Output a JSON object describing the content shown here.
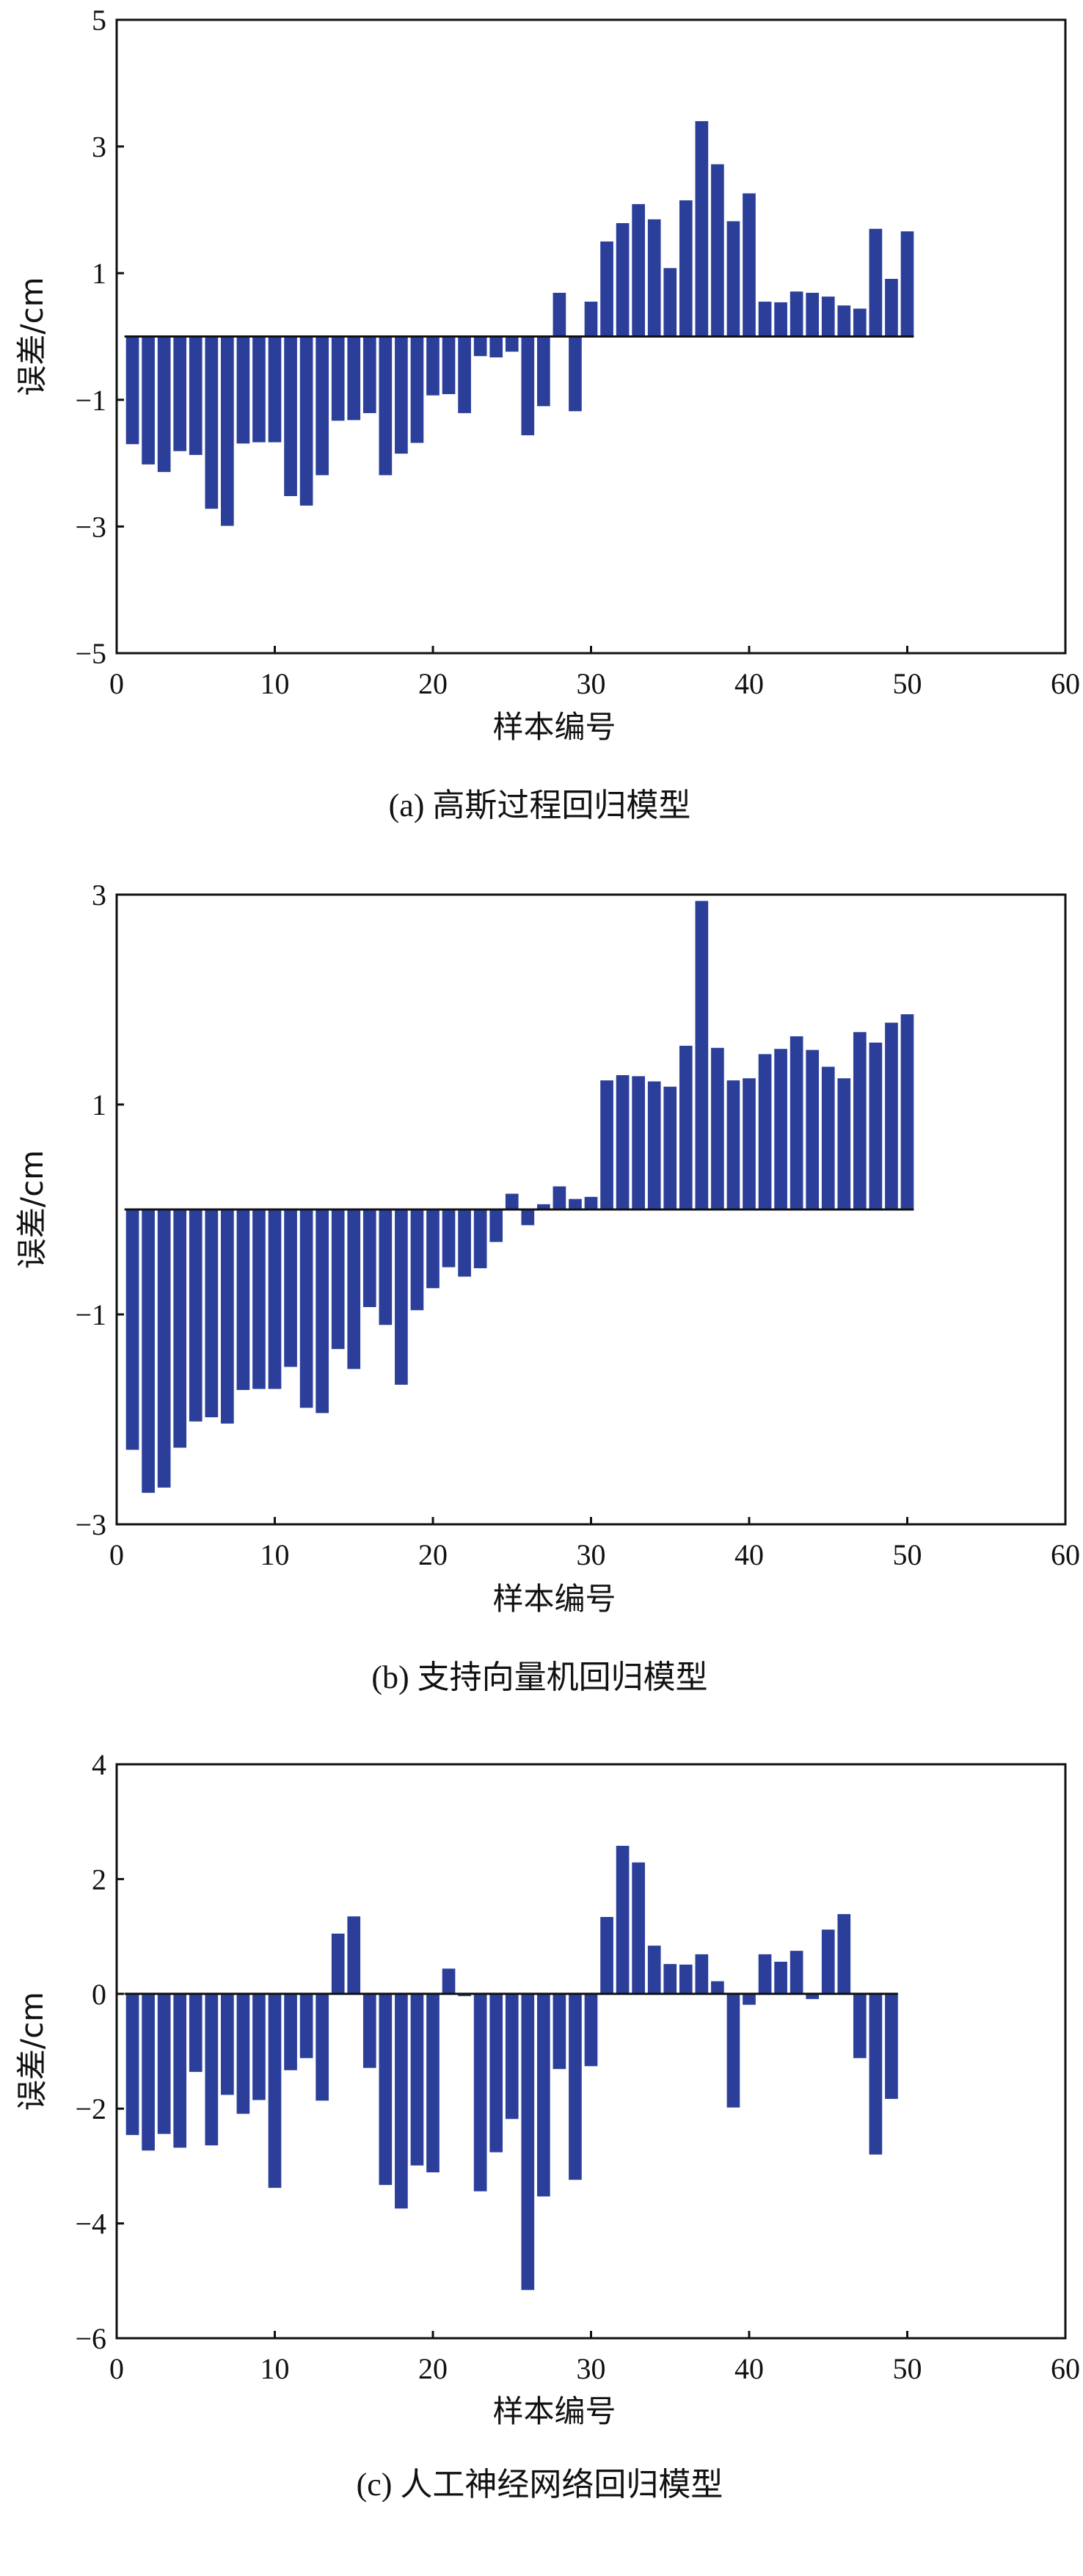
{
  "chart_data": [
    {
      "type": "bar",
      "caption": "(a) 高斯过程回归模型",
      "xlabel": "样本编号",
      "ylabel": "误差/cm",
      "xlim": [
        0,
        60
      ],
      "ylim": [
        -5,
        5
      ],
      "xticks": [
        0,
        10,
        20,
        30,
        40,
        50,
        60
      ],
      "yticks": [
        -5,
        -3,
        -1,
        1,
        3,
        5
      ],
      "grid": false,
      "bar_color": "#2b3f9a",
      "x": [
        1,
        2,
        3,
        4,
        5,
        6,
        7,
        8,
        9,
        10,
        11,
        12,
        13,
        14,
        15,
        16,
        17,
        18,
        19,
        20,
        21,
        22,
        23,
        24,
        25,
        26,
        27,
        28,
        29,
        30,
        31,
        32,
        33,
        34,
        35,
        36,
        37,
        38,
        39,
        40,
        41,
        42,
        43,
        44,
        45,
        46,
        47,
        48,
        49,
        50
      ],
      "values": [
        -1.7,
        -2.02,
        -2.14,
        -1.81,
        -1.87,
        -2.72,
        -2.99,
        -1.69,
        -1.67,
        -1.67,
        -2.52,
        -2.67,
        -2.19,
        -1.33,
        -1.32,
        -1.21,
        -2.19,
        -1.85,
        -1.68,
        -0.93,
        -0.91,
        -1.21,
        -0.31,
        -0.33,
        -0.24,
        -1.56,
        -1.1,
        0.69,
        -1.18,
        0.55,
        1.5,
        1.79,
        2.09,
        1.85,
        1.08,
        2.15,
        3.4,
        2.72,
        1.82,
        2.26,
        0.55,
        0.54,
        0.71,
        0.69,
        0.63,
        0.49,
        0.44,
        1.7,
        0.91,
        1.66
      ]
    },
    {
      "type": "bar",
      "caption": "(b) 支持向量机回归模型",
      "xlabel": "样本编号",
      "ylabel": "误差/cm",
      "xlim": [
        0,
        60
      ],
      "ylim": [
        -3,
        3
      ],
      "xticks": [
        0,
        10,
        20,
        30,
        40,
        50,
        60
      ],
      "yticks": [
        -3,
        -1,
        1,
        3
      ],
      "grid": false,
      "bar_color": "#2b3f9a",
      "x": [
        1,
        2,
        3,
        4,
        5,
        6,
        7,
        8,
        9,
        10,
        11,
        12,
        13,
        14,
        15,
        16,
        17,
        18,
        19,
        20,
        21,
        22,
        23,
        24,
        25,
        26,
        27,
        28,
        29,
        30,
        31,
        32,
        33,
        34,
        35,
        36,
        37,
        38,
        39,
        40,
        41,
        42,
        43,
        44,
        45,
        46,
        47,
        48,
        49,
        50
      ],
      "values": [
        -2.29,
        -2.7,
        -2.65,
        -2.27,
        -2.02,
        -1.98,
        -2.04,
        -1.72,
        -1.71,
        -1.71,
        -1.5,
        -1.89,
        -1.94,
        -1.33,
        -1.52,
        -0.93,
        -1.1,
        -1.67,
        -0.96,
        -0.75,
        -0.55,
        -0.64,
        -0.56,
        -0.31,
        0.15,
        -0.15,
        0.05,
        0.22,
        0.1,
        0.12,
        1.23,
        1.28,
        1.27,
        1.22,
        1.17,
        1.56,
        2.94,
        1.54,
        1.23,
        1.25,
        1.48,
        1.53,
        1.65,
        1.52,
        1.36,
        1.25,
        1.69,
        1.59,
        1.78,
        1.86
      ]
    },
    {
      "type": "bar",
      "caption": "(c) 人工神经网络回归模型",
      "xlabel": "样本编号",
      "ylabel": "误差/cm",
      "xlim": [
        0,
        60
      ],
      "ylim": [
        -6,
        4
      ],
      "xticks": [
        0,
        10,
        20,
        30,
        40,
        50,
        60
      ],
      "yticks": [
        -6,
        -4,
        -2,
        0,
        2,
        4
      ],
      "grid": false,
      "bar_color": "#2b3f9a",
      "x": [
        1,
        2,
        3,
        4,
        5,
        6,
        7,
        8,
        9,
        10,
        11,
        12,
        13,
        14,
        15,
        16,
        17,
        18,
        19,
        20,
        21,
        22,
        23,
        24,
        25,
        26,
        27,
        28,
        29,
        30,
        31,
        32,
        33,
        34,
        35,
        36,
        37,
        38,
        39,
        40,
        41,
        42,
        43,
        44,
        45,
        46,
        47,
        48,
        49
      ],
      "values": [
        -2.46,
        -2.73,
        -2.44,
        -2.68,
        -1.36,
        -2.64,
        -1.76,
        -2.09,
        -1.85,
        -3.38,
        -1.33,
        -1.12,
        -1.86,
        1.05,
        1.35,
        -1.29,
        -3.33,
        -3.74,
        -2.99,
        -3.11,
        0.44,
        -0.04,
        -3.44,
        -2.76,
        -2.18,
        -5.16,
        -3.53,
        -1.31,
        -3.24,
        -1.26,
        1.34,
        2.58,
        2.29,
        0.84,
        0.52,
        0.51,
        0.69,
        0.22,
        -1.98,
        -0.19,
        0.69,
        0.56,
        0.75,
        -0.09,
        1.12,
        1.39,
        -1.12,
        -2.8,
        -1.83
      ]
    }
  ]
}
